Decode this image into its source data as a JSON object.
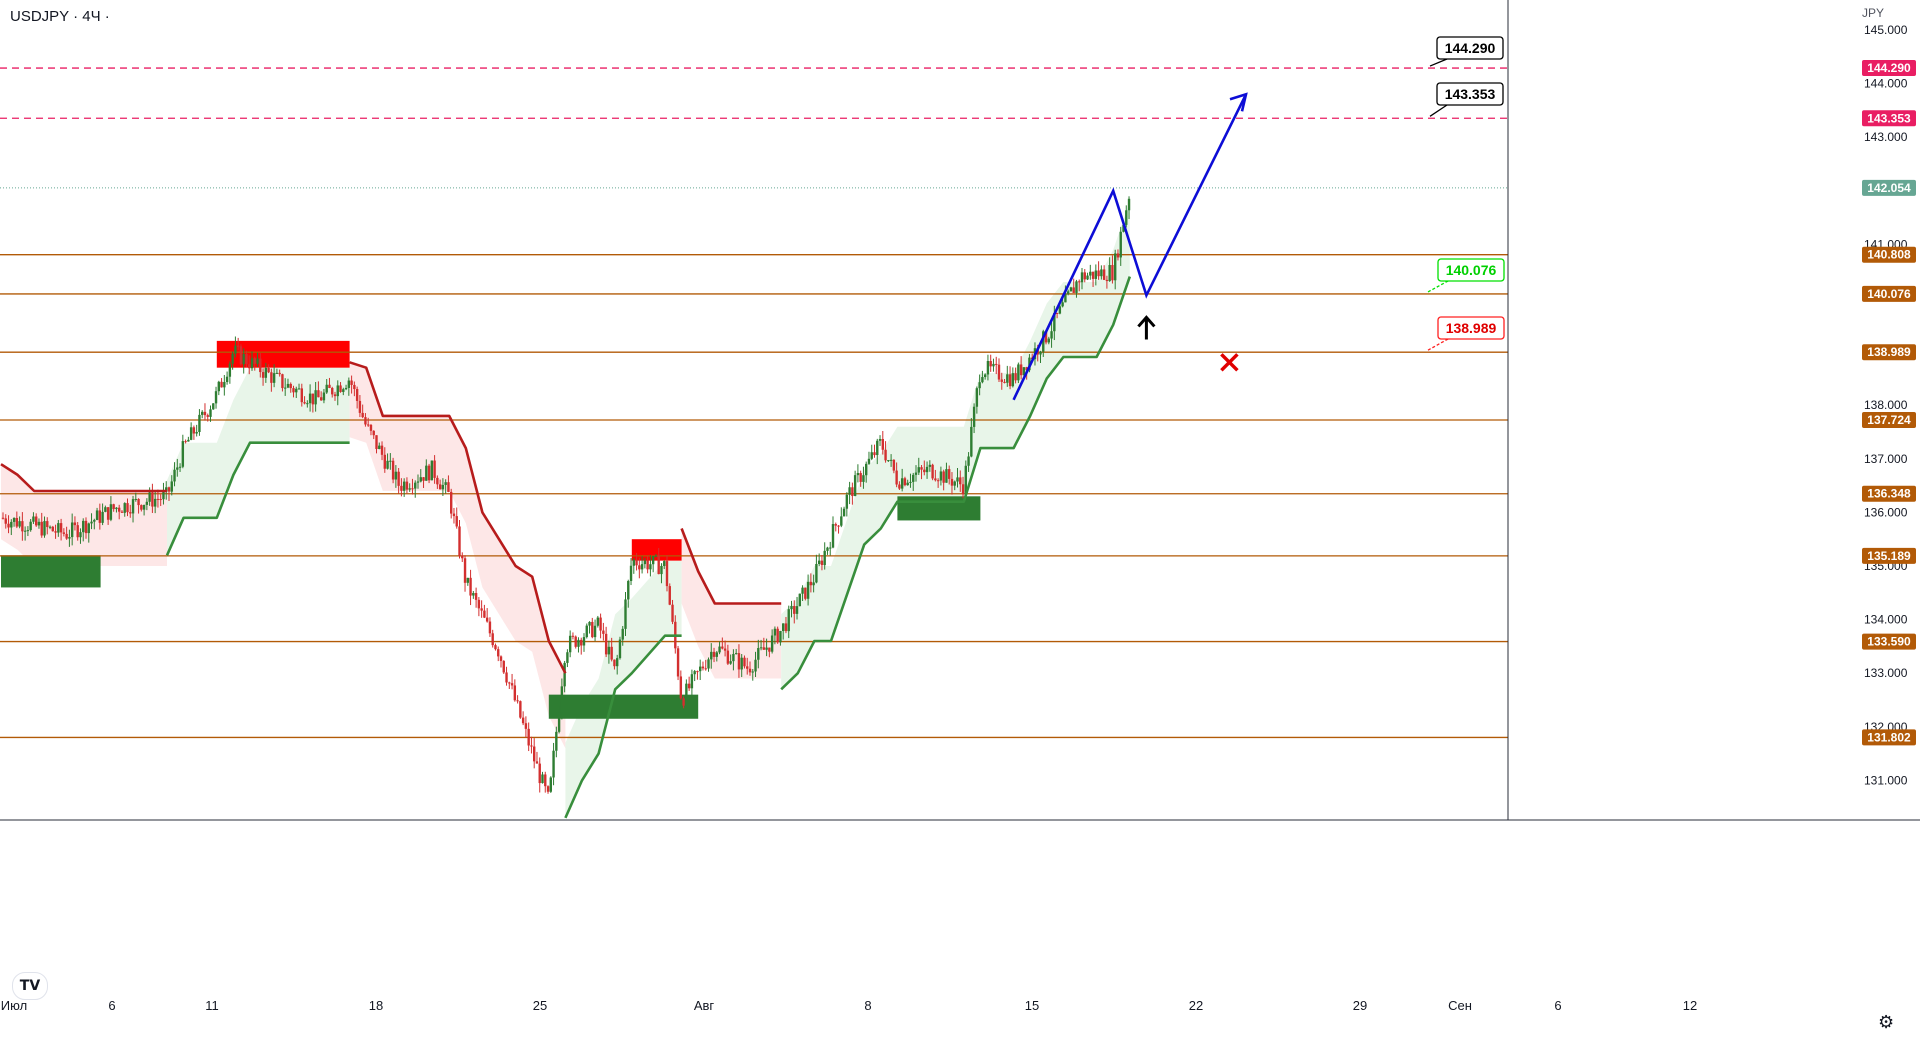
{
  "header": {
    "symbol": "USDJPY · 4Ч ·",
    "currency": "JPY"
  },
  "icons": {
    "settings": "gear-icon",
    "logo": "tradingview-logo"
  },
  "colors": {
    "up": "#26a69a",
    "down": "#ef5350",
    "body_up": "#2e7d32",
    "body_down": "#d32f2f",
    "trend_up": "#388e3c",
    "trend_down": "#b71c1c",
    "fill_up": "#e8f5e9",
    "fill_down": "#fde7e7",
    "level": "#b25a07",
    "target": "#e91e63",
    "path": "#0d0dd6",
    "demand": "#2e7d32",
    "supply": "#ff0000",
    "current": "#66a693"
  },
  "chart_data": {
    "type": "candlestick",
    "symbol": "USDJPY",
    "timeframe": "4Ч",
    "x_axis": {
      "labels": [
        "Июл",
        "6",
        "11",
        "18",
        "25",
        "Авг",
        "8",
        "15",
        "22",
        "29",
        "Сен",
        "6",
        "12"
      ]
    },
    "y_axis": {
      "range": [
        130.35,
        145.4
      ],
      "ticks": [
        "131.000",
        "132.000",
        "133.000",
        "134.000",
        "135.000",
        "136.000",
        "137.000",
        "138.000",
        "141.000",
        "143.000",
        "144.000",
        "145.000"
      ]
    },
    "current_price": "142.054",
    "support_resistance_levels": [
      {
        "value": 140.808,
        "label": "140.808"
      },
      {
        "value": 140.076,
        "label": "140.076"
      },
      {
        "value": 138.989,
        "label": "138.989"
      },
      {
        "value": 137.724,
        "label": "137.724"
      },
      {
        "value": 136.348,
        "label": "136.348"
      },
      {
        "value": 135.189,
        "label": "135.189"
      },
      {
        "value": 133.59,
        "label": "133.590"
      },
      {
        "value": 131.802,
        "label": "131.802"
      }
    ],
    "target_levels": [
      {
        "value": 144.29,
        "label": "144.290"
      },
      {
        "value": 143.353,
        "label": "143.353"
      }
    ],
    "callouts": [
      {
        "text": "144.290",
        "style": "target"
      },
      {
        "text": "143.353",
        "style": "target"
      },
      {
        "text": "140.076",
        "style": "entry"
      },
      {
        "text": "138.989",
        "style": "stop"
      }
    ],
    "projection_path": [
      {
        "date": "2022-08-31",
        "price": 138.1
      },
      {
        "date": "2022-09-06",
        "price": 142.0
      },
      {
        "date": "2022-09-08",
        "price": 140.05
      },
      {
        "date": "2022-09-14",
        "price": 143.8
      }
    ],
    "markers": [
      {
        "type": "buy-arrow",
        "date": "2022-09-08",
        "price": 139.6
      },
      {
        "type": "stop-cross",
        "date": "2022-09-13",
        "price": 138.8
      }
    ],
    "zones": [
      {
        "type": "demand",
        "from": "2022-07-01",
        "to": "2022-07-07",
        "top": 135.2,
        "bottom": 134.6
      },
      {
        "type": "supply",
        "from": "2022-07-14",
        "to": "2022-07-22",
        "top": 139.2,
        "bottom": 138.7
      },
      {
        "type": "supply",
        "from": "2022-08-08",
        "to": "2022-08-11",
        "top": 135.5,
        "bottom": 135.1
      },
      {
        "type": "demand",
        "from": "2022-08-03",
        "to": "2022-08-12",
        "top": 132.6,
        "bottom": 132.15
      },
      {
        "type": "demand",
        "from": "2022-08-24",
        "to": "2022-08-29",
        "top": 136.3,
        "bottom": 135.85
      }
    ],
    "trend_stop_segments": [
      {
        "direction": "down",
        "points": [
          [
            "2022-07-01",
            136.9
          ],
          [
            "2022-07-02",
            136.7
          ],
          [
            "2022-07-03",
            136.4
          ],
          [
            "2022-07-11",
            136.4
          ]
        ]
      },
      {
        "direction": "up",
        "points": [
          [
            "2022-07-11",
            135.2
          ],
          [
            "2022-07-12",
            135.9
          ],
          [
            "2022-07-14",
            135.9
          ],
          [
            "2022-07-15",
            136.7
          ],
          [
            "2022-07-16",
            137.3
          ],
          [
            "2022-07-22",
            137.3
          ]
        ]
      },
      {
        "direction": "down",
        "points": [
          [
            "2022-07-22",
            138.8
          ],
          [
            "2022-07-23",
            138.7
          ],
          [
            "2022-07-24",
            137.8
          ],
          [
            "2022-07-28",
            137.8
          ],
          [
            "2022-07-29",
            137.2
          ],
          [
            "2022-07-30",
            136.0
          ],
          [
            "2022-07-31",
            135.5
          ],
          [
            "2022-08-01",
            135.0
          ],
          [
            "2022-08-02",
            134.8
          ],
          [
            "2022-08-03",
            133.6
          ],
          [
            "2022-08-04",
            133.0
          ]
        ]
      },
      {
        "direction": "up",
        "points": [
          [
            "2022-08-04",
            130.3
          ],
          [
            "2022-08-05",
            131.0
          ],
          [
            "2022-08-06",
            131.5
          ],
          [
            "2022-08-07",
            132.7
          ],
          [
            "2022-08-08",
            133.0
          ],
          [
            "2022-08-10",
            133.7
          ],
          [
            "2022-08-11",
            133.7
          ]
        ]
      },
      {
        "direction": "down",
        "points": [
          [
            "2022-08-11",
            135.7
          ],
          [
            "2022-08-12",
            134.9
          ],
          [
            "2022-08-13",
            134.3
          ],
          [
            "2022-08-17",
            134.3
          ]
        ]
      },
      {
        "direction": "up",
        "points": [
          [
            "2022-08-17",
            132.7
          ],
          [
            "2022-08-18",
            133.0
          ],
          [
            "2022-08-19",
            133.6
          ],
          [
            "2022-08-20",
            133.6
          ],
          [
            "2022-08-21",
            134.5
          ],
          [
            "2022-08-22",
            135.4
          ],
          [
            "2022-08-23",
            135.7
          ],
          [
            "2022-08-24",
            136.2
          ],
          [
            "2022-08-28",
            136.2
          ],
          [
            "2022-08-29",
            137.2
          ],
          [
            "2022-08-31",
            137.2
          ],
          [
            "2022-09-01",
            137.8
          ],
          [
            "2022-09-02",
            138.5
          ],
          [
            "2022-09-03",
            138.9
          ],
          [
            "2022-09-05",
            138.9
          ],
          [
            "2022-09-06",
            139.5
          ],
          [
            "2022-09-07",
            140.4
          ]
        ]
      }
    ],
    "candles_series": "USDJPY 4H, 2022-07-01 to 2022-09-07"
  }
}
